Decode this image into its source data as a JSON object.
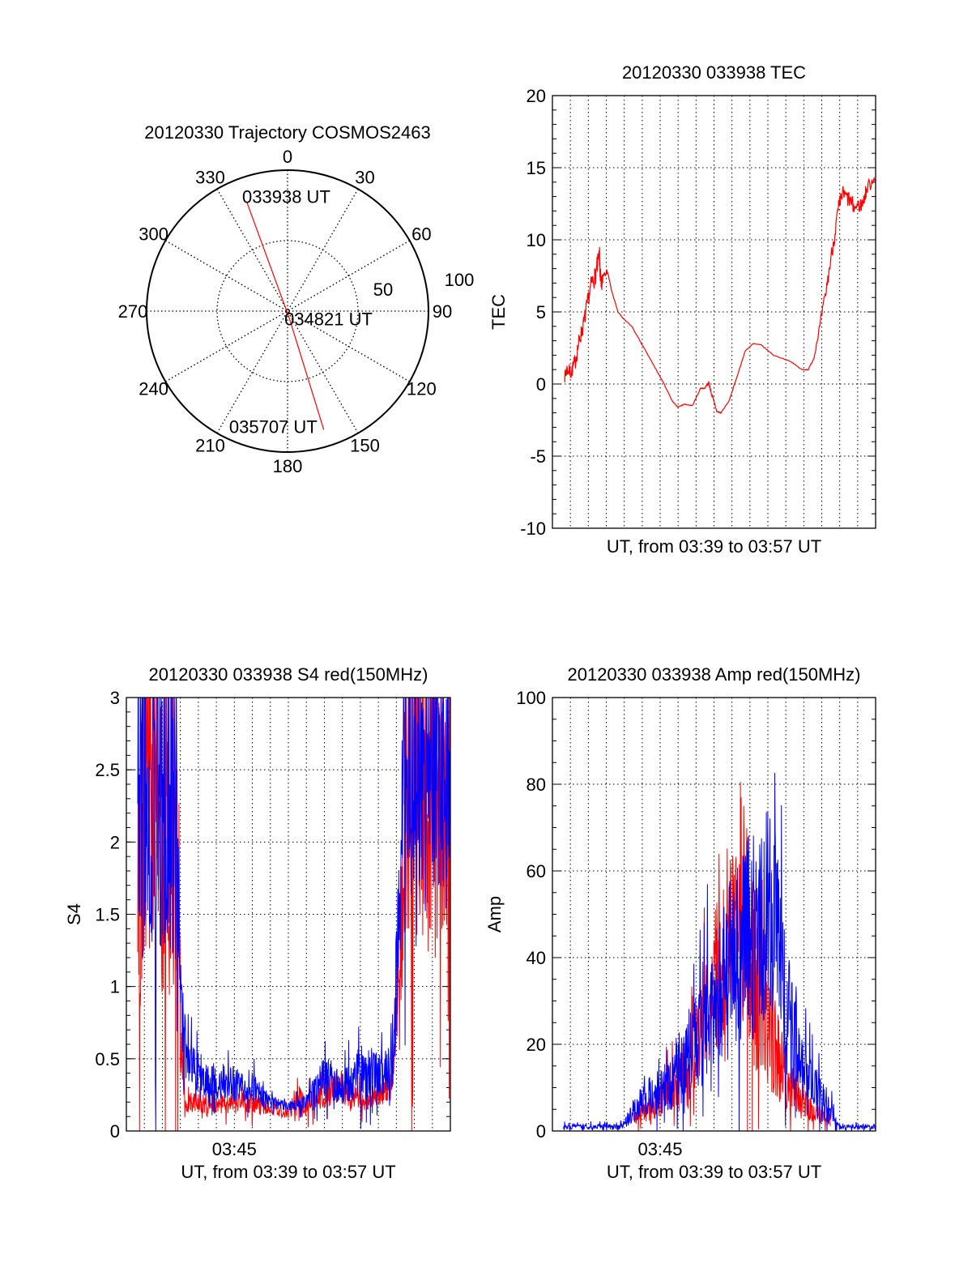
{
  "chart_data": [
    {
      "type": "polar",
      "title": "20120330 Trajectory COSMOS2463",
      "azimuth_labels": [
        "0",
        "30",
        "60",
        "90",
        "120",
        "150",
        "180",
        "210",
        "240",
        "270",
        "300",
        "330"
      ],
      "radial_labels": [
        "50",
        "100"
      ],
      "radial_range": [
        0,
        100
      ],
      "grid": true,
      "trajectory": {
        "color": "#ff0000",
        "points": [
          {
            "az": 339.5,
            "zen": 82,
            "label": "033938 UT"
          },
          {
            "az": 166,
            "zen": 5,
            "label": "034821 UT"
          },
          {
            "az": 163,
            "zen": 88,
            "label": "035707 UT"
          }
        ]
      }
    },
    {
      "type": "line",
      "title": "20120330 033938 TEC",
      "xlabel": "UT, from 03:39 to 03:57 UT",
      "ylabel": "TEC",
      "x_units": "minutes after 03:39",
      "xlim": [
        0,
        18
      ],
      "ylim": [
        -10,
        20
      ],
      "yticks": [
        "-10",
        "-5",
        "0",
        "5",
        "10",
        "15",
        "20"
      ],
      "grid": true,
      "series": [
        {
          "name": "TEC",
          "color": "#ff0000",
          "x": [
            0.68,
            0.81,
            1.04,
            1.26,
            1.49,
            1.71,
            1.94,
            2.17,
            2.39,
            2.62,
            2.71,
            2.84,
            3.07,
            3.29,
            3.65,
            3.97,
            4.42,
            5.1,
            5.55,
            6.22,
            6.68,
            6.99,
            7.35,
            7.8,
            8.25,
            8.48,
            8.71,
            8.93,
            9.16,
            9.38,
            9.83,
            10.28,
            10.74,
            11.19,
            11.64,
            12.31,
            13.22,
            13.89,
            14.25,
            14.57,
            14.89,
            15.25,
            15.61,
            15.92,
            16.15,
            16.51,
            16.82,
            17.28,
            17.5,
            18.0
          ],
          "y": [
            0.5,
            1.0,
            0.8,
            1.5,
            3.0,
            4.0,
            5.5,
            7.0,
            7.5,
            8.8,
            6.5,
            7.7,
            7.8,
            6.5,
            5.0,
            4.5,
            4.0,
            2.5,
            1.5,
            0.0,
            -1.2,
            -1.6,
            -1.4,
            -1.5,
            -0.3,
            -0.3,
            0.1,
            -1.0,
            -1.9,
            -2.0,
            -1.2,
            0.5,
            2.3,
            2.8,
            2.7,
            2.0,
            1.6,
            1.0,
            1.0,
            1.8,
            4.0,
            6.5,
            9.5,
            12.0,
            13.2,
            12.8,
            12.2,
            12.5,
            13.5,
            14.5
          ],
          "noise": [
            0.4,
            0.5,
            0.5,
            0.6,
            0.6,
            0.6,
            0.6,
            0.6,
            0.7,
            0.9,
            0.9,
            0.3,
            0.1,
            0.05,
            0.03,
            0.03,
            0.03,
            0.03,
            0.03,
            0.03,
            0.03,
            0.03,
            0.03,
            0.03,
            0.03,
            0.03,
            0.1,
            0.2,
            0.05,
            0.03,
            0.03,
            0.03,
            0.03,
            0.03,
            0.03,
            0.03,
            0.03,
            0.03,
            0.03,
            0.05,
            0.3,
            0.5,
            0.6,
            0.7,
            0.6,
            0.6,
            0.6,
            0.5,
            0.5,
            0.5
          ]
        }
      ]
    },
    {
      "type": "line",
      "title": "20120330 033938 S4 red(150MHz)",
      "xlabel": "UT, from 03:39 to 03:57 UT",
      "ylabel": "S4",
      "x_units": "minutes after 03:39",
      "xlim": [
        0,
        18
      ],
      "ylim": [
        0,
        3
      ],
      "xtick_labels": [
        {
          "t": 6,
          "label": "03:45"
        }
      ],
      "yticks": [
        "0",
        "0.5",
        "1",
        "1.5",
        "2",
        "2.5",
        "3"
      ],
      "grid": true,
      "series": [
        {
          "name": "red",
          "color": "#ff0000",
          "profile": [
            [
              0.63,
              2.2,
              0.6
            ],
            [
              2.9,
              2.0,
              0.6
            ],
            [
              3.0,
              0.7,
              0.4
            ],
            [
              3.3,
              0.2,
              0.35
            ],
            [
              5,
              0.18,
              0.35
            ],
            [
              7,
              0.2,
              0.4
            ],
            [
              8,
              0.15,
              0.3
            ],
            [
              9,
              0.12,
              0.3
            ],
            [
              9.5,
              0.2,
              0.8
            ],
            [
              10,
              0.18,
              0.4
            ],
            [
              11,
              0.27,
              0.4
            ],
            [
              12,
              0.3,
              0.4
            ],
            [
              13,
              0.2,
              0.4
            ],
            [
              14,
              0.25,
              0.3
            ],
            [
              14.8,
              0.3,
              0.3
            ],
            [
              15.2,
              1.2,
              0.4
            ],
            [
              15.6,
              2.4,
              0.5
            ],
            [
              18,
              2.4,
              0.5
            ]
          ],
          "dropouts": [
            [
              0.63,
              2.9
            ],
            [
              15.3,
              18
            ]
          ]
        },
        {
          "name": "blue",
          "color": "#0000ff",
          "profile": [
            [
              0.63,
              2.4,
              0.5
            ],
            [
              2.9,
              2.3,
              0.5
            ],
            [
              3.0,
              1.0,
              0.3
            ],
            [
              3.3,
              0.6,
              0.4
            ],
            [
              3.6,
              0.45,
              0.4
            ],
            [
              4.5,
              0.35,
              0.35
            ],
            [
              6,
              0.33,
              0.4
            ],
            [
              7,
              0.3,
              0.35
            ],
            [
              8,
              0.2,
              0.25
            ],
            [
              9,
              0.17,
              0.2
            ],
            [
              10,
              0.2,
              0.3
            ],
            [
              11,
              0.38,
              0.4
            ],
            [
              12,
              0.3,
              0.4
            ],
            [
              13,
              0.42,
              0.45
            ],
            [
              14,
              0.4,
              0.4
            ],
            [
              14.8,
              0.45,
              0.4
            ],
            [
              15.2,
              1.6,
              0.4
            ],
            [
              15.5,
              2.5,
              0.35
            ],
            [
              18,
              2.5,
              0.35
            ]
          ],
          "dropouts": [
            [
              0.63,
              2.4
            ]
          ]
        }
      ]
    },
    {
      "type": "line",
      "title": "20120330 033938 Amp red(150MHz)",
      "xlabel": "UT, from 03:39 to 03:57 UT",
      "ylabel": "Amp",
      "x_units": "minutes after 03:39",
      "xlim": [
        0,
        18
      ],
      "ylim": [
        0,
        100
      ],
      "xtick_labels": [
        {
          "t": 6,
          "label": "03:45"
        }
      ],
      "yticks": [
        "0",
        "20",
        "40",
        "60",
        "80",
        "100"
      ],
      "grid": true,
      "series": [
        {
          "name": "red",
          "color": "#ff0000",
          "profile": [
            [
              4.5,
              3,
              0.5
            ],
            [
              5.5,
              5,
              0.6
            ],
            [
              7,
              12,
              0.5
            ],
            [
              8,
              20,
              0.5
            ],
            [
              9,
              30,
              0.5
            ],
            [
              10,
              45,
              0.45
            ],
            [
              10.5,
              55,
              0.5
            ],
            [
              11,
              40,
              0.6
            ],
            [
              12,
              25,
              0.6
            ],
            [
              13,
              12,
              0.6
            ],
            [
              14,
              6,
              0.6
            ],
            [
              15.5,
              2,
              0.6
            ]
          ],
          "dropouts": []
        },
        {
          "name": "blue",
          "color": "#0000ff",
          "profile": [
            [
              0.6,
              1,
              0.6
            ],
            [
              3.8,
              1,
              0.6
            ],
            [
              4.5,
              4,
              0.6
            ],
            [
              5,
              7,
              0.6
            ],
            [
              6,
              9,
              0.6
            ],
            [
              7,
              14,
              0.6
            ],
            [
              8,
              20,
              0.6
            ],
            [
              9,
              30,
              0.5
            ],
            [
              10,
              40,
              0.5
            ],
            [
              11,
              45,
              0.55
            ],
            [
              12,
              50,
              0.5
            ],
            [
              12.5,
              45,
              0.5
            ],
            [
              13,
              28,
              0.6
            ],
            [
              14,
              12,
              0.7
            ],
            [
              15,
              7,
              0.7
            ],
            [
              15.7,
              3,
              0.7
            ],
            [
              16,
              1,
              0.6
            ],
            [
              18,
              1,
              0.6
            ]
          ],
          "dropouts": []
        }
      ]
    }
  ]
}
